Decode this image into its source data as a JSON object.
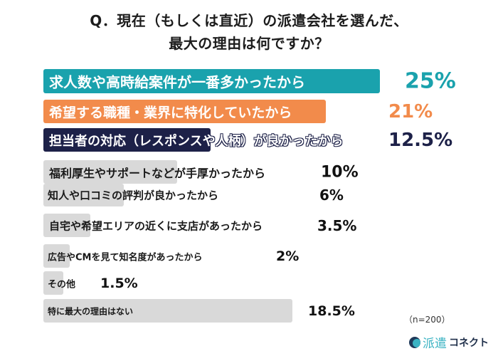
{
  "title": {
    "line1": "Q．現在（もしくは直近）の派遣会社を選んだ、",
    "line2": "最大の理由は何ですか？"
  },
  "note": "（n=200）",
  "brand": {
    "name_kanji": "派遣",
    "name_kana": "コネクト",
    "colors": {
      "teal": "#3bb3c3",
      "navy": "#1f2f4a"
    }
  },
  "colors": {
    "teal": "#1aa2ad",
    "orange": "#f28b4b",
    "navy": "#1d2148",
    "gray": "#d9d9d9"
  },
  "chart_data": {
    "type": "bar",
    "orientation": "horizontal",
    "title": "Q．現在（もしくは直近）の派遣会社を選んだ、最大の理由は何ですか？",
    "xlabel": "",
    "ylabel": "",
    "categories": [
      "求人数や高時給案件が一番多かったから",
      "希望する職種・業界に特化していたから",
      "担当者の対応（レスポンスや人柄）が良かったから",
      "福利厚生やサポートなどが手厚かったから",
      "知人や口コミの評判が良かったから",
      "自宅や希望エリアの近くに支店があったから",
      "広告やCMを見て知名度があったから",
      "その他",
      "特に最大の理由はない"
    ],
    "values": [
      25,
      21,
      12.5,
      10,
      6,
      3.5,
      2,
      1.5,
      18.5
    ],
    "value_labels": [
      "25%",
      "21%",
      "12.5%",
      "10%",
      "6%",
      "3.5%",
      "2%",
      "1.5%",
      "18.5%"
    ],
    "unit": "%",
    "n": 200,
    "grid": false,
    "legend": null
  }
}
